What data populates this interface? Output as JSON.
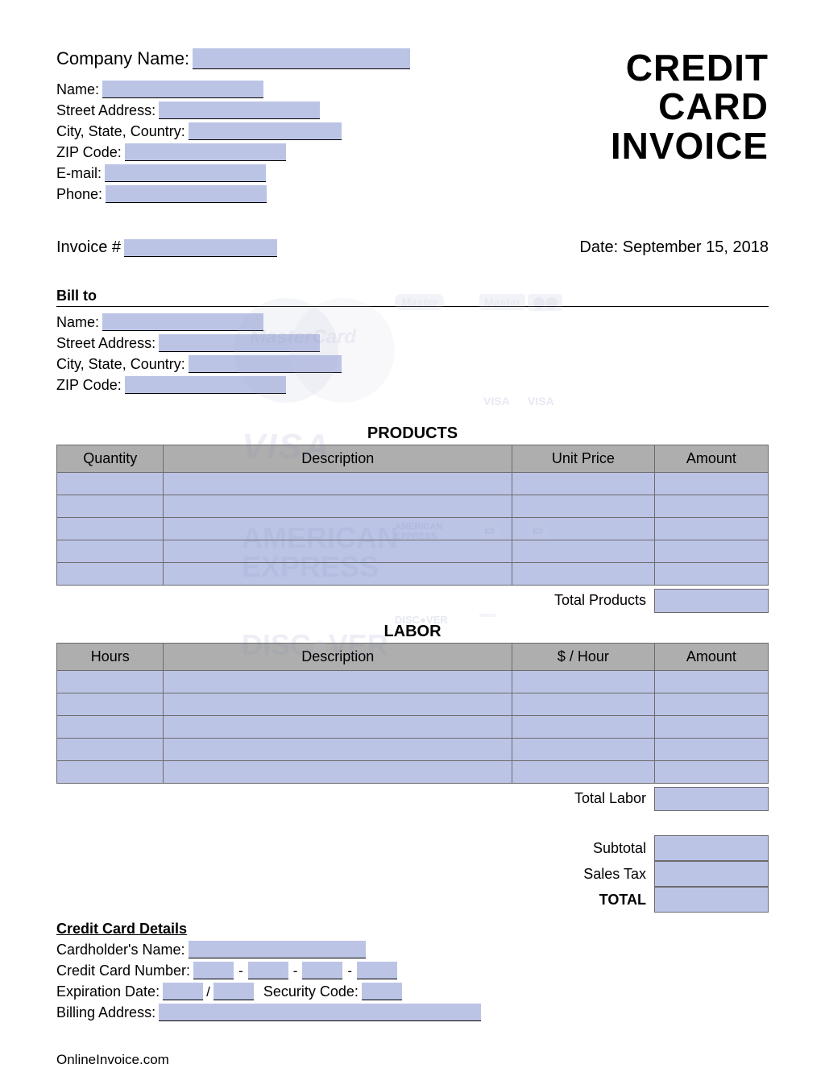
{
  "title_lines": [
    "CREDIT",
    "CARD",
    "INVOICE"
  ],
  "company": {
    "company_label": "Company Name:",
    "name_label": "Name:",
    "street_label": "Street Address:",
    "city_label": "City, State, Country:",
    "zip_label": "ZIP Code:",
    "email_label": "E-mail:",
    "phone_label": "Phone:"
  },
  "invoice": {
    "number_label": "Invoice #",
    "date_label": "Date:",
    "date_value": "September 15, 2018"
  },
  "billto": {
    "heading": "Bill to",
    "name_label": "Name:",
    "street_label": "Street Address:",
    "city_label": "City, State, Country:",
    "zip_label": "ZIP Code:"
  },
  "products": {
    "title": "PRODUCTS",
    "columns": [
      "Quantity",
      "Description",
      "Unit Price",
      "Amount"
    ],
    "row_count": 5,
    "total_label": "Total Products"
  },
  "labor": {
    "title": "LABOR",
    "columns": [
      "Hours",
      "Description",
      "$ / Hour",
      "Amount"
    ],
    "row_count": 5,
    "total_label": "Total Labor"
  },
  "summary": {
    "subtotal": "Subtotal",
    "salestax": "Sales Tax",
    "total": "TOTAL"
  },
  "cc": {
    "heading": "Credit Card Details",
    "cardholder_label": "Cardholder's Name:",
    "number_label": "Credit Card Number:",
    "expiry_label": "Expiration Date:",
    "security_label": "Security Code:",
    "billing_label": "Billing Address:"
  },
  "footer": "OnlineInvoice.com",
  "colors": {
    "field_bg": "#bcc4e6",
    "header_bg": "#aeaeae",
    "border": "#6b6b6b"
  }
}
